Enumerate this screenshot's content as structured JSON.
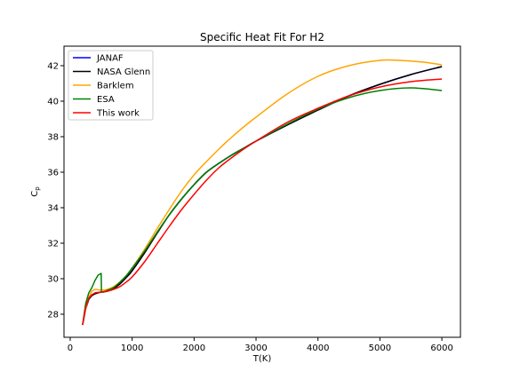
{
  "chart_data": {
    "type": "line",
    "title": "Specific Heat Fit For H2",
    "xlabel": "T(K)",
    "ylabel": "C",
    "ylabel_sub": "p",
    "xlim": [
      -100,
      6300
    ],
    "ylim": [
      26.7,
      43.1
    ],
    "xticks": [
      0,
      1000,
      2000,
      3000,
      4000,
      5000,
      6000
    ],
    "yticks": [
      28,
      30,
      32,
      34,
      36,
      38,
      40,
      42
    ],
    "grid": false,
    "legend_position": "upper-left",
    "series": [
      {
        "name": "JANAF",
        "color": "#0000ff",
        "points": [
          [
            200,
            27.4
          ],
          [
            250,
            28.3
          ],
          [
            300,
            28.85
          ],
          [
            350,
            29.05
          ],
          [
            400,
            29.15
          ],
          [
            500,
            29.25
          ],
          [
            600,
            29.3
          ],
          [
            700,
            29.45
          ],
          [
            800,
            29.7
          ],
          [
            900,
            30.05
          ],
          [
            1000,
            30.45
          ],
          [
            1200,
            31.45
          ],
          [
            1400,
            32.55
          ],
          [
            1600,
            33.6
          ],
          [
            1800,
            34.5
          ],
          [
            2000,
            35.3
          ],
          [
            2200,
            36.0
          ],
          [
            2400,
            36.5
          ],
          [
            2600,
            36.95
          ],
          [
            2800,
            37.35
          ],
          [
            3000,
            37.75
          ],
          [
            3500,
            38.65
          ],
          [
            4000,
            39.5
          ],
          [
            4500,
            40.3
          ],
          [
            5000,
            40.95
          ],
          [
            5500,
            41.5
          ],
          [
            6000,
            41.95
          ]
        ]
      },
      {
        "name": "NASA Glenn",
        "color": "#000000",
        "points": [
          [
            200,
            27.4
          ],
          [
            250,
            28.3
          ],
          [
            300,
            28.85
          ],
          [
            350,
            29.05
          ],
          [
            400,
            29.15
          ],
          [
            500,
            29.25
          ],
          [
            600,
            29.3
          ],
          [
            700,
            29.45
          ],
          [
            800,
            29.7
          ],
          [
            900,
            30.05
          ],
          [
            1000,
            30.45
          ],
          [
            1200,
            31.45
          ],
          [
            1400,
            32.55
          ],
          [
            1600,
            33.6
          ],
          [
            1800,
            34.5
          ],
          [
            2000,
            35.3
          ],
          [
            2200,
            36.0
          ],
          [
            2400,
            36.5
          ],
          [
            2600,
            36.95
          ],
          [
            2800,
            37.35
          ],
          [
            3000,
            37.75
          ],
          [
            3500,
            38.65
          ],
          [
            4000,
            39.5
          ],
          [
            4500,
            40.3
          ],
          [
            5000,
            40.95
          ],
          [
            5500,
            41.5
          ],
          [
            6000,
            41.95
          ]
        ]
      },
      {
        "name": "Barklem",
        "color": "#ffa500",
        "points": [
          [
            200,
            27.4
          ],
          [
            250,
            28.3
          ],
          [
            300,
            28.95
          ],
          [
            350,
            29.3
          ],
          [
            400,
            29.4
          ],
          [
            500,
            29.35
          ],
          [
            600,
            29.4
          ],
          [
            700,
            29.55
          ],
          [
            800,
            29.8
          ],
          [
            900,
            30.15
          ],
          [
            1000,
            30.6
          ],
          [
            1200,
            31.65
          ],
          [
            1400,
            32.8
          ],
          [
            1600,
            33.9
          ],
          [
            1800,
            34.95
          ],
          [
            2000,
            35.85
          ],
          [
            2200,
            36.6
          ],
          [
            2400,
            37.3
          ],
          [
            2600,
            37.95
          ],
          [
            2800,
            38.55
          ],
          [
            3000,
            39.1
          ],
          [
            3500,
            40.4
          ],
          [
            4000,
            41.4
          ],
          [
            4500,
            42.0
          ],
          [
            5000,
            42.3
          ],
          [
            5300,
            42.3
          ],
          [
            5700,
            42.2
          ],
          [
            6000,
            42.05
          ]
        ]
      },
      {
        "name": "ESA",
        "color": "#008000",
        "points": [
          [
            200,
            27.4
          ],
          [
            250,
            28.6
          ],
          [
            300,
            29.2
          ],
          [
            350,
            29.5
          ],
          [
            400,
            29.9
          ],
          [
            450,
            30.2
          ],
          [
            500,
            30.3
          ],
          [
            505,
            29.3
          ],
          [
            600,
            29.35
          ],
          [
            700,
            29.5
          ],
          [
            800,
            29.8
          ],
          [
            900,
            30.15
          ],
          [
            1000,
            30.6
          ],
          [
            1200,
            31.55
          ],
          [
            1400,
            32.6
          ],
          [
            1600,
            33.6
          ],
          [
            1800,
            34.5
          ],
          [
            2000,
            35.3
          ],
          [
            2200,
            36.0
          ],
          [
            2400,
            36.5
          ],
          [
            2600,
            36.95
          ],
          [
            2800,
            37.35
          ],
          [
            3000,
            37.75
          ],
          [
            3500,
            38.7
          ],
          [
            4000,
            39.55
          ],
          [
            4500,
            40.2
          ],
          [
            5000,
            40.6
          ],
          [
            5500,
            40.75
          ],
          [
            6000,
            40.6
          ]
        ]
      },
      {
        "name": "This work",
        "color": "#ff0000",
        "points": [
          [
            200,
            27.4
          ],
          [
            250,
            28.4
          ],
          [
            300,
            28.9
          ],
          [
            350,
            29.1
          ],
          [
            400,
            29.2
          ],
          [
            500,
            29.25
          ],
          [
            600,
            29.3
          ],
          [
            700,
            29.4
          ],
          [
            800,
            29.55
          ],
          [
            900,
            29.8
          ],
          [
            1000,
            30.1
          ],
          [
            1200,
            30.95
          ],
          [
            1400,
            31.95
          ],
          [
            1600,
            32.95
          ],
          [
            1800,
            33.9
          ],
          [
            2000,
            34.75
          ],
          [
            2200,
            35.55
          ],
          [
            2400,
            36.25
          ],
          [
            2600,
            36.8
          ],
          [
            2800,
            37.3
          ],
          [
            3000,
            37.75
          ],
          [
            3500,
            38.8
          ],
          [
            4000,
            39.6
          ],
          [
            4500,
            40.3
          ],
          [
            5000,
            40.8
          ],
          [
            5500,
            41.1
          ],
          [
            6000,
            41.25
          ]
        ]
      }
    ]
  }
}
